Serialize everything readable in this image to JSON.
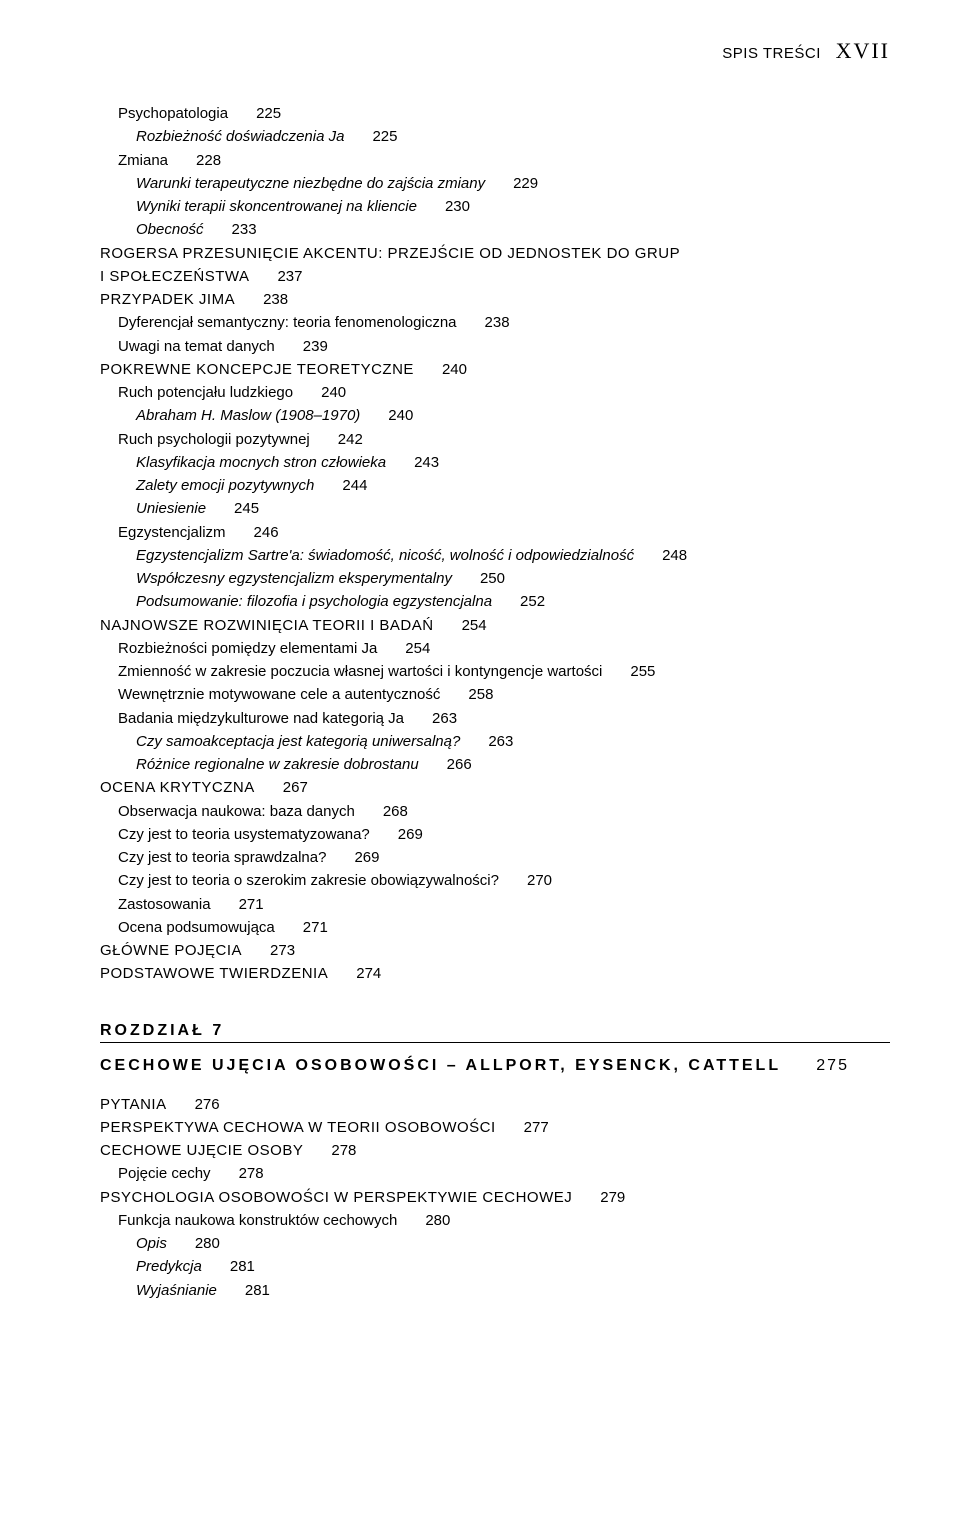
{
  "header": {
    "label": "SPIS TREŚCI",
    "roman": "XVII"
  },
  "toc": [
    {
      "text": "Psychopatologia",
      "page": "225",
      "indent": 1,
      "style": ""
    },
    {
      "text": "Rozbieżność doświadczenia Ja",
      "page": "225",
      "indent": 2,
      "style": "italic"
    },
    {
      "text": "Zmiana",
      "page": "228",
      "indent": 1,
      "style": ""
    },
    {
      "text": "Warunki terapeutyczne niezbędne do zajścia zmiany",
      "page": "229",
      "indent": 2,
      "style": "italic"
    },
    {
      "text": "Wyniki terapii skoncentrowanej na kliencie",
      "page": "230",
      "indent": 2,
      "style": "italic"
    },
    {
      "text": "Obecność",
      "page": "233",
      "indent": 2,
      "style": "italic"
    },
    {
      "text": "ROGERSA PRZESUNIĘCIE AKCENTU: PRZEJŚCIE OD JEDNOSTEK DO GRUP",
      "page": "",
      "indent": 0,
      "style": "caps"
    },
    {
      "text": "I SPOŁECZEŃSTWA",
      "page": "237",
      "indent": 0,
      "style": "caps"
    },
    {
      "text": "PRZYPADEK JIMA",
      "page": "238",
      "indent": 0,
      "style": "caps"
    },
    {
      "text": "Dyferencjał semantyczny: teoria fenomenologiczna",
      "page": "238",
      "indent": 1,
      "style": ""
    },
    {
      "text": "Uwagi na temat danych",
      "page": "239",
      "indent": 1,
      "style": ""
    },
    {
      "text": "POKREWNE KONCEPCJE TEORETYCZNE",
      "page": "240",
      "indent": 0,
      "style": "caps"
    },
    {
      "text": "Ruch potencjału ludzkiego",
      "page": "240",
      "indent": 1,
      "style": ""
    },
    {
      "text": "Abraham H. Maslow (1908–1970)",
      "page": "240",
      "indent": 2,
      "style": "italic"
    },
    {
      "text": "Ruch psychologii pozytywnej",
      "page": "242",
      "indent": 1,
      "style": ""
    },
    {
      "text": "Klasyfikacja mocnych stron człowieka",
      "page": "243",
      "indent": 2,
      "style": "italic"
    },
    {
      "text": "Zalety emocji pozytywnych",
      "page": "244",
      "indent": 2,
      "style": "italic"
    },
    {
      "text": "Uniesienie",
      "page": "245",
      "indent": 2,
      "style": "italic"
    },
    {
      "text": "Egzystencjalizm",
      "page": "246",
      "indent": 1,
      "style": ""
    },
    {
      "text": "Egzystencjalizm Sartre'a: świadomość, nicość, wolność i odpowiedzialność",
      "page": "248",
      "indent": 2,
      "style": "italic"
    },
    {
      "text": "Współczesny egzystencjalizm eksperymentalny",
      "page": "250",
      "indent": 2,
      "style": "italic"
    },
    {
      "text": "Podsumowanie: filozofia i psychologia egzystencjalna",
      "page": "252",
      "indent": 2,
      "style": "italic"
    },
    {
      "text": "NAJNOWSZE ROZWINIĘCIA TEORII I BADAŃ",
      "page": "254",
      "indent": 0,
      "style": "caps"
    },
    {
      "text": "Rozbieżności pomiędzy elementami Ja",
      "page": "254",
      "indent": 1,
      "style": ""
    },
    {
      "text": "Zmienność w zakresie poczucia własnej wartości i kontyngencje wartości",
      "page": "255",
      "indent": 1,
      "style": ""
    },
    {
      "text": "Wewnętrznie motywowane cele a autentyczność",
      "page": "258",
      "indent": 1,
      "style": ""
    },
    {
      "text": "Badania międzykulturowe nad kategorią Ja",
      "page": "263",
      "indent": 1,
      "style": ""
    },
    {
      "text": "Czy samoakceptacja jest kategorią uniwersalną?",
      "page": "263",
      "indent": 2,
      "style": "italic"
    },
    {
      "text": "Różnice regionalne w zakresie dobrostanu",
      "page": "266",
      "indent": 2,
      "style": "italic"
    },
    {
      "text": "OCENA KRYTYCZNA",
      "page": "267",
      "indent": 0,
      "style": "caps"
    },
    {
      "text": "Obserwacja naukowa: baza danych",
      "page": "268",
      "indent": 1,
      "style": ""
    },
    {
      "text": "Czy jest to teoria usystematyzowana?",
      "page": "269",
      "indent": 1,
      "style": ""
    },
    {
      "text": "Czy jest to teoria sprawdzalna?",
      "page": "269",
      "indent": 1,
      "style": ""
    },
    {
      "text": "Czy jest to teoria o szerokim zakresie obowiązywalności?",
      "page": "270",
      "indent": 1,
      "style": ""
    },
    {
      "text": "Zastosowania",
      "page": "271",
      "indent": 1,
      "style": ""
    },
    {
      "text": "Ocena podsumowująca",
      "page": "271",
      "indent": 1,
      "style": ""
    },
    {
      "text": "GŁÓWNE POJĘCIA",
      "page": "273",
      "indent": 0,
      "style": "caps"
    },
    {
      "text": "PODSTAWOWE TWIERDZENIA",
      "page": "274",
      "indent": 0,
      "style": "caps"
    }
  ],
  "chapter": {
    "label": "ROZDZIAŁ 7",
    "title": "CECHOWE UJĘCIA OSOBOWOŚCI – ALLPORT, EYSENCK, CATTELL",
    "page": "275"
  },
  "toc2": [
    {
      "text": "PYTANIA",
      "page": "276",
      "indent": 0,
      "style": "caps"
    },
    {
      "text": "PERSPEKTYWA CECHOWA W TEORII OSOBOWOŚCI",
      "page": "277",
      "indent": 0,
      "style": "caps"
    },
    {
      "text": "CECHOWE UJĘCIE OSOBY",
      "page": "278",
      "indent": 0,
      "style": "caps"
    },
    {
      "text": "Pojęcie cechy",
      "page": "278",
      "indent": 1,
      "style": ""
    },
    {
      "text": "PSYCHOLOGIA OSOBOWOŚCI W PERSPEKTYWIE CECHOWEJ",
      "page": "279",
      "indent": 0,
      "style": "caps"
    },
    {
      "text": "Funkcja naukowa konstruktów cechowych",
      "page": "280",
      "indent": 1,
      "style": ""
    },
    {
      "text": "Opis",
      "page": "280",
      "indent": 2,
      "style": "italic"
    },
    {
      "text": "Predykcja",
      "page": "281",
      "indent": 2,
      "style": "italic"
    },
    {
      "text": "Wyjaśnianie",
      "page": "281",
      "indent": 2,
      "style": "italic"
    }
  ]
}
